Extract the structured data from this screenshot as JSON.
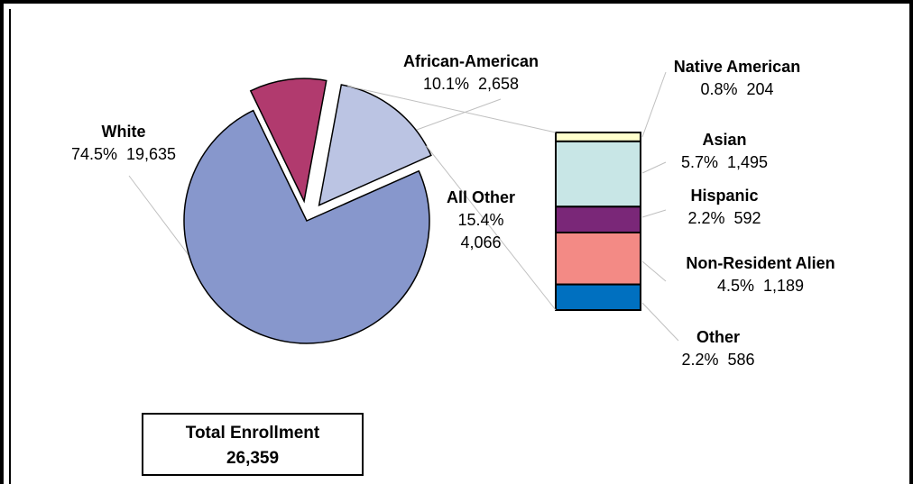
{
  "chart_data": {
    "type": "pie",
    "total": {
      "label": "Total Enrollment",
      "value": "26,359"
    },
    "slices": [
      {
        "key": "white",
        "name": "White",
        "pct": "74.5%",
        "value": 19635,
        "value_text": "19,635",
        "color": "#8797CC"
      },
      {
        "key": "african-american",
        "name": "African-American",
        "pct": "10.1%",
        "value": 2658,
        "value_text": "2,658",
        "color": "#B13A6E"
      },
      {
        "key": "all-other",
        "name": "All Other",
        "pct": "15.4%",
        "value": 4066,
        "value_text": "4,066",
        "color": "#BBC4E3"
      }
    ],
    "breakdown": {
      "of": "All Other",
      "segments": [
        {
          "key": "native-american",
          "name": "Native American",
          "pct": "0.8%",
          "value": 204,
          "value_text": "204",
          "color": "#FFFFCC"
        },
        {
          "key": "asian",
          "name": "Asian",
          "pct": "5.7%",
          "value": 1495,
          "value_text": "1,495",
          "color": "#C8E6E6"
        },
        {
          "key": "hispanic",
          "name": "Hispanic",
          "pct": "2.2%",
          "value": 592,
          "value_text": "592",
          "color": "#7A2778"
        },
        {
          "key": "non-resident-alien",
          "name": "Non-Resident Alien",
          "pct": "4.5%",
          "value": 1189,
          "value_text": "1,189",
          "color": "#F38A85"
        },
        {
          "key": "other",
          "name": "Other",
          "pct": "2.2%",
          "value": 586,
          "value_text": "586",
          "color": "#0070C0"
        }
      ]
    }
  }
}
